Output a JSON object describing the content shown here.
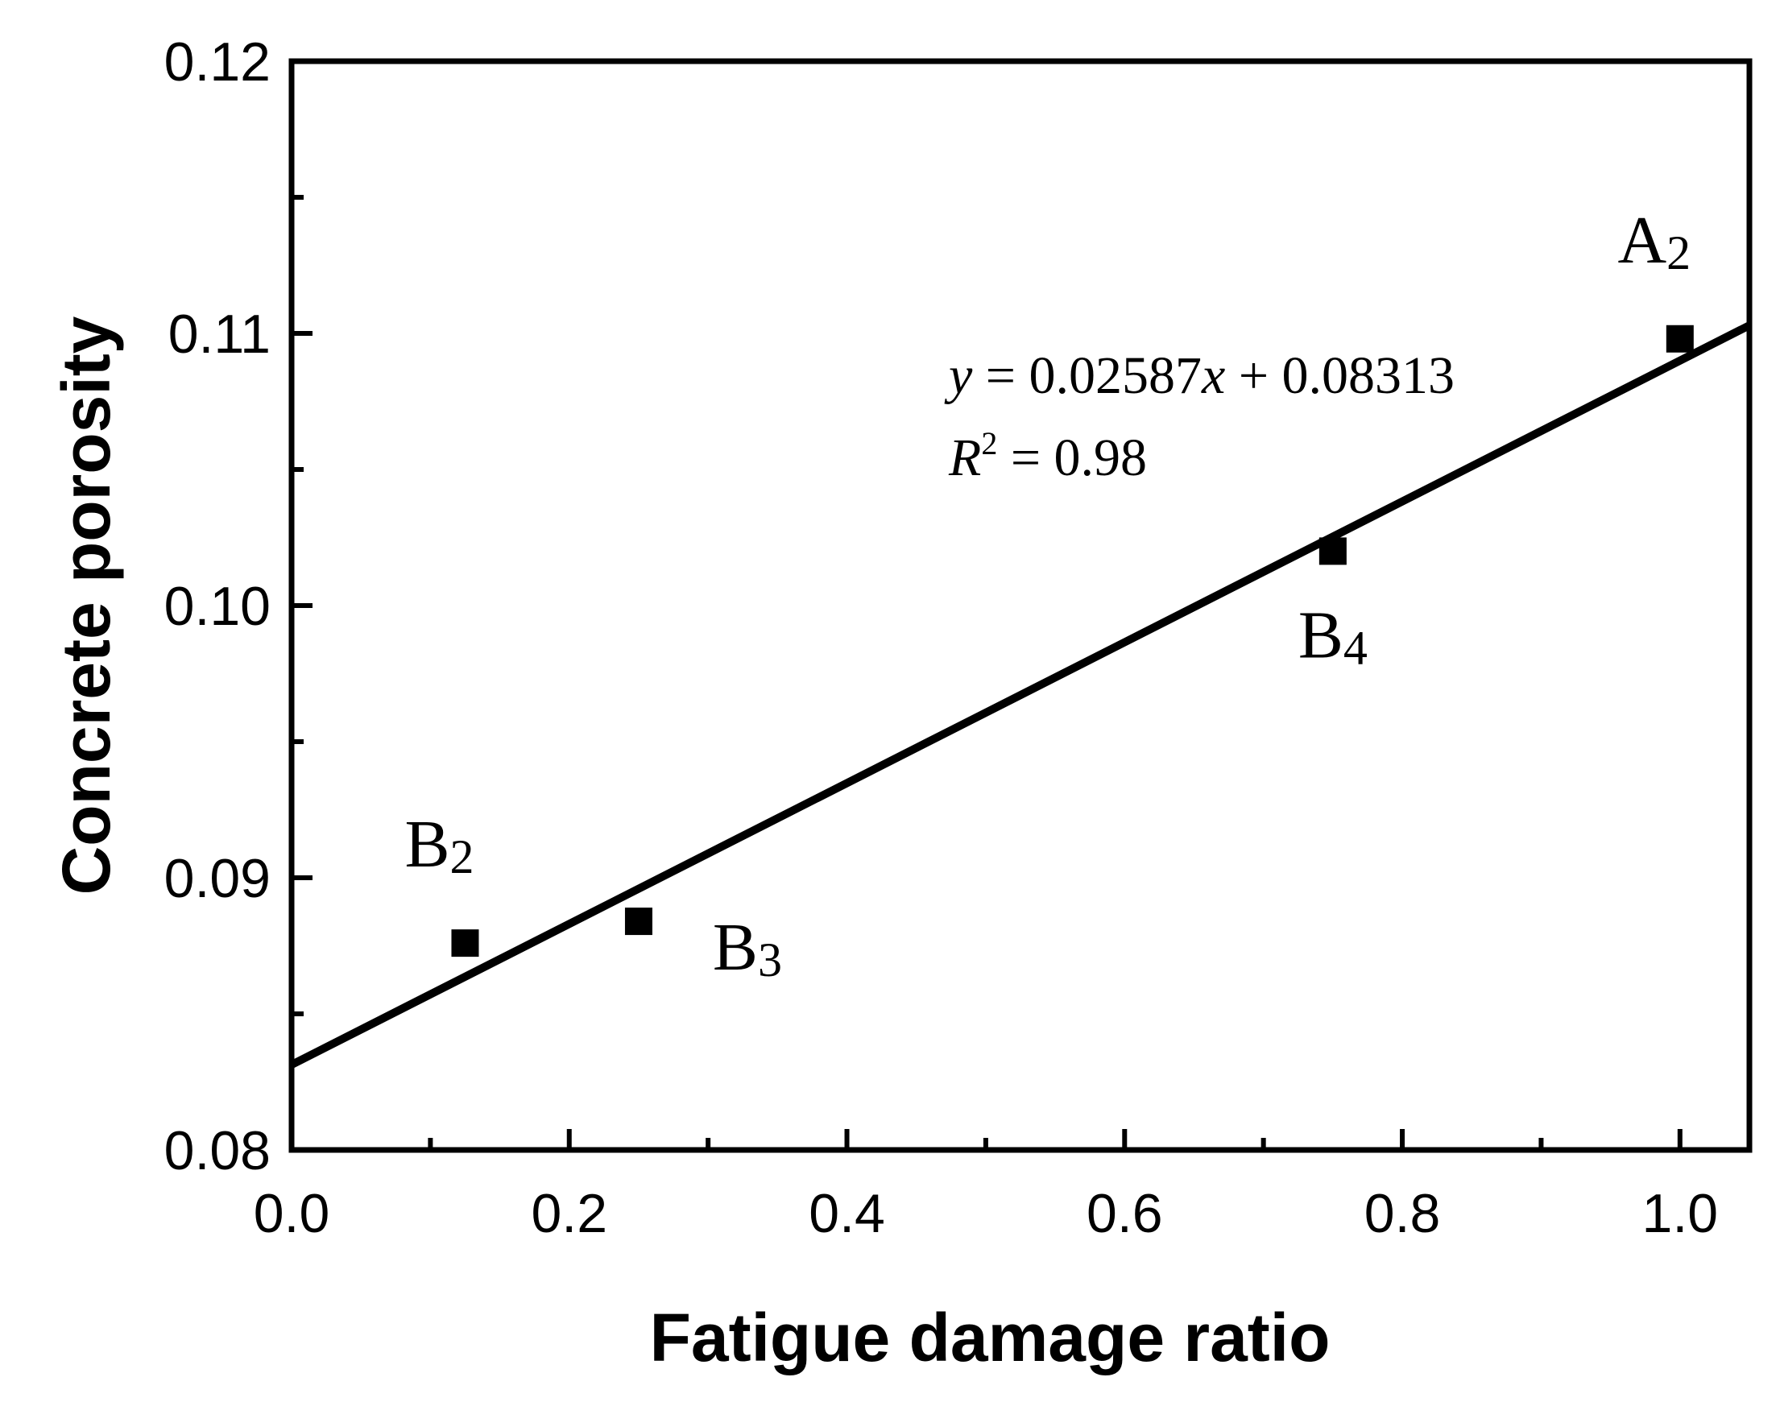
{
  "chart_data": {
    "type": "scatter",
    "xlabel": "Fatigue damage ratio",
    "ylabel": "Concrete porosity",
    "xlim": [
      0.0,
      1.05
    ],
    "ylim": [
      0.08,
      0.12
    ],
    "x_ticks": [
      0.0,
      0.2,
      0.4,
      0.6,
      0.8,
      1.0
    ],
    "x_tick_labels": [
      "0.0",
      "0.2",
      "0.4",
      "0.6",
      "0.8",
      "1.0"
    ],
    "x_minor_ticks": [
      0.1,
      0.3,
      0.5,
      0.7,
      0.9
    ],
    "y_ticks": [
      0.08,
      0.09,
      0.1,
      0.11,
      0.12
    ],
    "y_tick_labels": [
      "0.08",
      "0.09",
      "0.10",
      "0.11",
      "0.12"
    ],
    "y_minor_ticks": [
      0.085,
      0.095,
      0.105,
      0.115
    ],
    "grid": false,
    "points": [
      {
        "label": "B",
        "sub": "2",
        "x": 0.125,
        "y": 0.0876,
        "label_pos": "above-left"
      },
      {
        "label": "B",
        "sub": "3",
        "x": 0.25,
        "y": 0.0884,
        "label_pos": "below-right"
      },
      {
        "label": "B",
        "sub": "4",
        "x": 0.75,
        "y": 0.102,
        "label_pos": "below"
      },
      {
        "label": "A",
        "sub": "2",
        "x": 1.0,
        "y": 0.1098,
        "label_pos": "above-left"
      }
    ],
    "fit": {
      "slope": 0.02587,
      "intercept": 0.08313,
      "equation": {
        "y": "y",
        "eq": " = 0.02587",
        "x": "x",
        "rest": " + 0.08313"
      },
      "r2": {
        "R": "R",
        "sup": "2",
        "rest": " = 0.98"
      }
    },
    "marker": "square",
    "color": "#000000"
  }
}
